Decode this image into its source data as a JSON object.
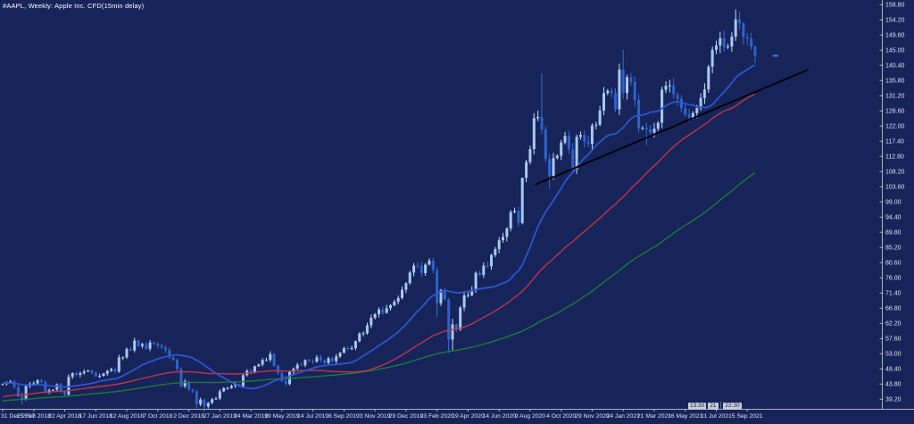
{
  "window": {
    "title": "#AAPL, Weekly:  Apple Inc. CFD(15min delay)"
  },
  "colors": {
    "background": "#16245a",
    "candle_up_body": "#a9c8ef",
    "candle_up_wick": "#c6daf5",
    "candle_down_body": "#2f62cc",
    "candle_down_wick": "#3a6cd4",
    "axis_line": "#aab2c2",
    "axis_text": "#dde3ef",
    "title_text": "#ffffff",
    "last_price_marker": "#4a7fe0"
  },
  "chart_data": {
    "type": "candlestick",
    "symbol": "#AAPL",
    "timeframe": "Weekly",
    "title": "#AAPL, Weekly:  Apple Inc. CFD(15min delay)",
    "grid": "off",
    "legend_position": "none",
    "y_axis": {
      "side": "right",
      "range": [
        36.3,
        160.2
      ],
      "tick_step": 4.6,
      "ticks": [
        158.8,
        154.2,
        149.6,
        145.0,
        140.4,
        135.8,
        131.2,
        126.6,
        122.0,
        117.4,
        112.8,
        108.2,
        103.6,
        99.0,
        94.4,
        89.8,
        85.2,
        80.6,
        76.0,
        71.4,
        66.8,
        62.2,
        57.6,
        53.0,
        48.4,
        43.8,
        39.2
      ]
    },
    "x_axis": {
      "bars_per_label": 8,
      "labels": [
        "31 Dec 2017",
        "25 Feb 2018",
        "22 Apr 2018",
        "17 Jun 2018",
        "12 Aug 2018",
        "7 Oct 2018",
        "2 Dec 2018",
        "27 Jan 2019",
        "24 Mar 2019",
        "19 May 2019",
        "14 Jul 2019",
        "8 Sep 2019",
        "3 Nov 2019",
        "29 Dec 2019",
        "23 Feb 2020",
        "19 Apr 2020",
        "14 Jun 2020",
        "9 Aug 2020",
        "4 Oct 2020",
        "29 Nov 2020",
        "24 Jan 2021",
        "21 Mar 2021",
        "16 May 2021",
        "11 Jul 2021",
        "5 Sep 2021"
      ]
    },
    "candles": {
      "first_open": 43.6,
      "closes": [
        43.8,
        44.3,
        44.6,
        42.9,
        40.1,
        39.1,
        43.2,
        43.9,
        44.0,
        45.0,
        44.5,
        41.2,
        41.9,
        42.1,
        43.7,
        41.4,
        40.6,
        46.0,
        47.1,
        46.6,
        47.1,
        47.6,
        47.9,
        47.2,
        46.2,
        46.3,
        47.0,
        47.8,
        48.3,
        47.6,
        51.9,
        51.9,
        54.4,
        54.0,
        57.0,
        55.3,
        55.9,
        54.5,
        56.4,
        56.0,
        55.5,
        54.9,
        54.1,
        51.9,
        51.1,
        48.4,
        43.1,
        44.6,
        42.1,
        41.6,
        37.7,
        39.1,
        37.0,
        38.1,
        39.2,
        39.4,
        41.6,
        42.6,
        42.6,
        43.2,
        43.7,
        43.2,
        46.5,
        47.8,
        47.5,
        49.2,
        49.7,
        51.1,
        51.1,
        52.9,
        49.3,
        47.2,
        44.7,
        43.8,
        47.5,
        48.5,
        49.7,
        49.5,
        51.1,
        50.8,
        50.6,
        51.9,
        51.0,
        50.2,
        51.6,
        50.7,
        52.2,
        53.3,
        54.7,
        54.4,
        54.7,
        56.8,
        59.1,
        59.2,
        61.6,
        63.9,
        65.0,
        66.4,
        65.4,
        66.8,
        67.7,
        68.8,
        69.9,
        72.4,
        74.4,
        77.6,
        79.7,
        79.6,
        77.4,
        80.0,
        81.2,
        78.3,
        68.3,
        72.3,
        69.5,
        57.3,
        61.9,
        60.4,
        67.0,
        70.7,
        70.7,
        72.3,
        77.5,
        76.9,
        79.7,
        79.5,
        82.9,
        84.7,
        87.4,
        88.4,
        91.0,
        95.9,
        96.3,
        92.6,
        106.3,
        111.1,
        115.0,
        124.4,
        124.8,
        121.0,
        112.0,
        106.8,
        112.3,
        113.0,
        117.0,
        119.0,
        115.0,
        108.9,
        118.7,
        119.3,
        117.3,
        116.6,
        122.2,
        122.4,
        126.7,
        132.0,
        132.7,
        132.1,
        127.1,
        139.1,
        132.0,
        136.8,
        135.4,
        129.9,
        121.3,
        121.4,
        121.0,
        120.0,
        121.2,
        123.0,
        133.0,
        134.2,
        134.3,
        131.5,
        130.2,
        127.4,
        125.4,
        124.6,
        125.9,
        127.4,
        130.5,
        133.1,
        140.0,
        145.1,
        146.4,
        148.6,
        145.9,
        146.1,
        149.1,
        154.3,
        153.2,
        149.0,
        148.6,
        146.1,
        143.3
      ],
      "hl_overrides": {
        "5": [
          41.3,
          37.6
        ],
        "50": [
          42.0,
          36.6
        ],
        "52": [
          39.4,
          35.5
        ],
        "112": [
          79.3,
          64.1
        ],
        "115": [
          69.9,
          53.2
        ],
        "116": [
          63.6,
          53.9
        ],
        "134": [
          106.4,
          92.2
        ],
        "139": [
          138.0,
          119.7
        ],
        "141": [
          113.5,
          103.1
        ],
        "160": [
          145.1,
          130.2
        ],
        "166": [
          123.0,
          116.2
        ],
        "189": [
          157.3,
          147.8
        ],
        "191": [
          153.4,
          146.8
        ],
        "194": [
          146.4,
          141.0
        ]
      }
    },
    "moving_averages": [
      {
        "name": "sma-20",
        "period": 20,
        "seed": 44.5,
        "color": "#2e55cd",
        "width": 1.8
      },
      {
        "name": "sma-50",
        "period": 50,
        "seed": 36.0,
        "color": "#c13547",
        "width": 1.4
      },
      {
        "name": "sma-100",
        "period": 100,
        "seed": 33.5,
        "color": "#1e7a36",
        "width": 1.4
      }
    ],
    "trendline": {
      "start_bar": 137.5,
      "start_price": 104.3,
      "end_bar": 207.5,
      "end_price": 139.0,
      "color": "#000000",
      "width": 1.8
    },
    "last_price": 143.3,
    "session_chips": [
      "13:30",
      "21",
      "22:30"
    ]
  }
}
